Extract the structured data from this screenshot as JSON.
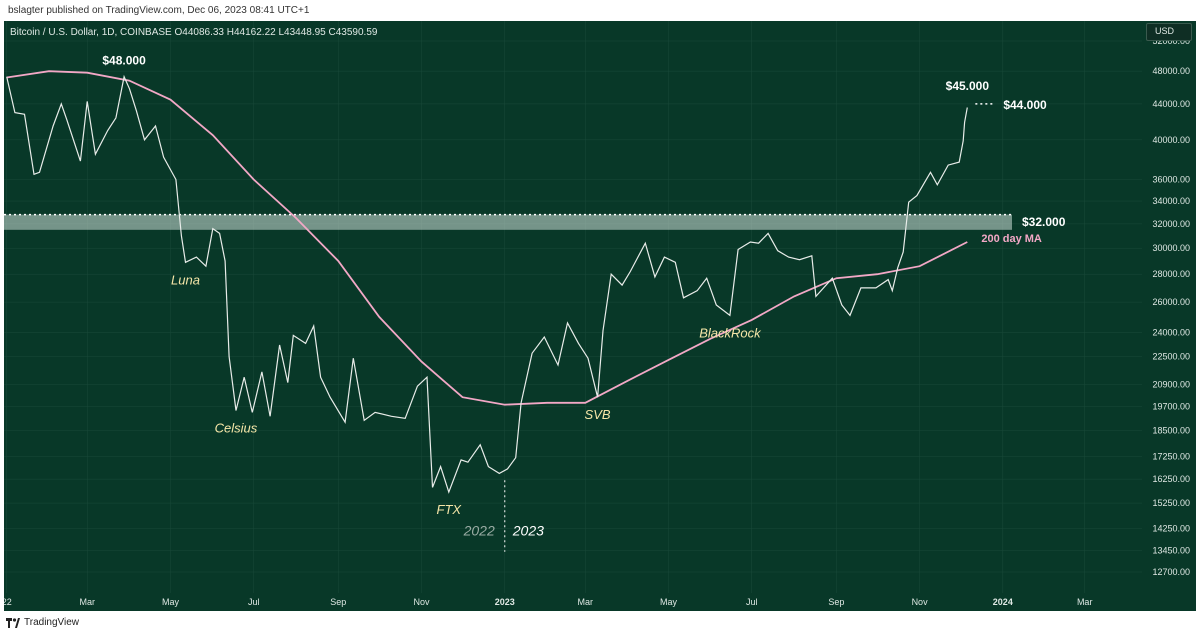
{
  "header": {
    "publisher": "bslagter published on TradingView.com, Dec 06, 2023 08:41 UTC+1"
  },
  "footer": {
    "brand": "TradingView"
  },
  "usd_button": "USD",
  "chart_data": {
    "type": "line",
    "legend_text": "Bitcoin / U.S. Dollar, 1D, COINBASE  O44086.33  H44162.22  L43448.95  C43590.59",
    "ohlc": {
      "open": 44086.33,
      "high": 44162.22,
      "low": 43448.95,
      "close": 43590.59
    },
    "y_ticks": [
      52000,
      48000,
      44000,
      40000,
      36000,
      34000,
      32000,
      30000,
      28000,
      26000,
      24000,
      22500,
      20900,
      19700,
      18500,
      17250,
      16250,
      15250,
      14250,
      13450,
      12700
    ],
    "y_tick_labels": [
      "52000.00",
      "48000.00",
      "44000.00",
      "40000.00",
      "36000.00",
      "34000.00",
      "32000.00",
      "30000.00",
      "28000.00",
      "26000.00",
      "24000.00",
      "22500.00",
      "20900.00",
      "19700.00",
      "18500.00",
      "17250.00",
      "16250.00",
      "15250.00",
      "14250.00",
      "13450.00",
      "12700.00"
    ],
    "x_ticks": [
      {
        "date": "2022-01-01",
        "label": "22"
      },
      {
        "date": "2022-03-01",
        "label": "Mar"
      },
      {
        "date": "2022-05-01",
        "label": "May"
      },
      {
        "date": "2022-07-01",
        "label": "Jul"
      },
      {
        "date": "2022-09-01",
        "label": "Sep"
      },
      {
        "date": "2022-11-01",
        "label": "Nov"
      },
      {
        "date": "2023-01-01",
        "label": "2023"
      },
      {
        "date": "2023-03-01",
        "label": "Mar"
      },
      {
        "date": "2023-05-01",
        "label": "May"
      },
      {
        "date": "2023-07-01",
        "label": "Jul"
      },
      {
        "date": "2023-09-01",
        "label": "Sep"
      },
      {
        "date": "2023-11-01",
        "label": "Nov"
      },
      {
        "date": "2024-01-01",
        "label": "2024"
      },
      {
        "date": "2024-03-01",
        "label": "Mar"
      }
    ],
    "x_range": [
      "2021-12-30",
      "2024-04-12"
    ],
    "log_scale": true,
    "series": [
      {
        "color": "#e8ece9",
        "points": [
          [
            "2022-01-01",
            47300
          ],
          [
            "2022-01-07",
            43000
          ],
          [
            "2022-01-14",
            42800
          ],
          [
            "2022-01-21",
            36500
          ],
          [
            "2022-01-25",
            36700
          ],
          [
            "2022-02-04",
            41500
          ],
          [
            "2022-02-10",
            44000
          ],
          [
            "2022-02-14",
            42200
          ],
          [
            "2022-02-24",
            37800
          ],
          [
            "2022-03-01",
            44300
          ],
          [
            "2022-03-07",
            38500
          ],
          [
            "2022-03-16",
            41000
          ],
          [
            "2022-03-22",
            42400
          ],
          [
            "2022-03-28",
            47300
          ],
          [
            "2022-04-01",
            45800
          ],
          [
            "2022-04-06",
            43200
          ],
          [
            "2022-04-12",
            40000
          ],
          [
            "2022-04-20",
            41500
          ],
          [
            "2022-04-26",
            38200
          ],
          [
            "2022-05-05",
            36000
          ],
          [
            "2022-05-09",
            31000
          ],
          [
            "2022-05-12",
            28900
          ],
          [
            "2022-05-20",
            29300
          ],
          [
            "2022-05-27",
            28600
          ],
          [
            "2022-06-01",
            31600
          ],
          [
            "2022-06-06",
            31200
          ],
          [
            "2022-06-10",
            29000
          ],
          [
            "2022-06-13",
            22500
          ],
          [
            "2022-06-18",
            19500
          ],
          [
            "2022-06-24",
            21300
          ],
          [
            "2022-06-30",
            19400
          ],
          [
            "2022-07-07",
            21600
          ],
          [
            "2022-07-13",
            19200
          ],
          [
            "2022-07-20",
            23200
          ],
          [
            "2022-07-26",
            21000
          ],
          [
            "2022-07-30",
            23800
          ],
          [
            "2022-08-08",
            23300
          ],
          [
            "2022-08-14",
            24400
          ],
          [
            "2022-08-19",
            21300
          ],
          [
            "2022-08-26",
            20200
          ],
          [
            "2022-09-06",
            18900
          ],
          [
            "2022-09-12",
            22400
          ],
          [
            "2022-09-20",
            19000
          ],
          [
            "2022-09-28",
            19400
          ],
          [
            "2022-10-10",
            19200
          ],
          [
            "2022-10-20",
            19100
          ],
          [
            "2022-10-29",
            20800
          ],
          [
            "2022-11-05",
            21300
          ],
          [
            "2022-11-09",
            15900
          ],
          [
            "2022-11-15",
            16800
          ],
          [
            "2022-11-21",
            15700
          ],
          [
            "2022-11-30",
            17100
          ],
          [
            "2022-12-05",
            17000
          ],
          [
            "2022-12-14",
            17800
          ],
          [
            "2022-12-20",
            16800
          ],
          [
            "2022-12-28",
            16500
          ],
          [
            "2023-01-03",
            16700
          ],
          [
            "2023-01-09",
            17200
          ],
          [
            "2023-01-13",
            19900
          ],
          [
            "2023-01-21",
            22700
          ],
          [
            "2023-01-30",
            23700
          ],
          [
            "2023-02-09",
            22000
          ],
          [
            "2023-02-16",
            24600
          ],
          [
            "2023-02-24",
            23300
          ],
          [
            "2023-03-03",
            22400
          ],
          [
            "2023-03-10",
            20200
          ],
          [
            "2023-03-14",
            24100
          ],
          [
            "2023-03-20",
            28000
          ],
          [
            "2023-03-28",
            27200
          ],
          [
            "2023-04-03",
            28200
          ],
          [
            "2023-04-14",
            30400
          ],
          [
            "2023-04-21",
            27800
          ],
          [
            "2023-04-28",
            29300
          ],
          [
            "2023-05-06",
            28900
          ],
          [
            "2023-05-12",
            26300
          ],
          [
            "2023-05-22",
            26800
          ],
          [
            "2023-05-29",
            27700
          ],
          [
            "2023-06-05",
            25800
          ],
          [
            "2023-06-15",
            25100
          ],
          [
            "2023-06-21",
            29900
          ],
          [
            "2023-06-30",
            30500
          ],
          [
            "2023-07-06",
            30400
          ],
          [
            "2023-07-13",
            31200
          ],
          [
            "2023-07-20",
            29800
          ],
          [
            "2023-07-28",
            29300
          ],
          [
            "2023-08-05",
            29100
          ],
          [
            "2023-08-14",
            29400
          ],
          [
            "2023-08-17",
            26400
          ],
          [
            "2023-08-29",
            27700
          ],
          [
            "2023-09-05",
            25800
          ],
          [
            "2023-09-11",
            25100
          ],
          [
            "2023-09-19",
            27000
          ],
          [
            "2023-09-30",
            27000
          ],
          [
            "2023-10-09",
            27600
          ],
          [
            "2023-10-12",
            26800
          ],
          [
            "2023-10-16",
            28500
          ],
          [
            "2023-10-20",
            29700
          ],
          [
            "2023-10-24",
            33900
          ],
          [
            "2023-10-30",
            34500
          ],
          [
            "2023-11-09",
            36700
          ],
          [
            "2023-11-14",
            35500
          ],
          [
            "2023-11-22",
            37400
          ],
          [
            "2023-11-30",
            37700
          ],
          [
            "2023-12-03",
            39900
          ],
          [
            "2023-12-04",
            41900
          ],
          [
            "2023-12-06",
            43590
          ]
        ]
      },
      {
        "name": "200 day MA",
        "color": "#f2a8c6",
        "points": [
          [
            "2022-01-01",
            47200
          ],
          [
            "2022-02-01",
            48000
          ],
          [
            "2022-03-01",
            47800
          ],
          [
            "2022-04-01",
            46800
          ],
          [
            "2022-05-01",
            44500
          ],
          [
            "2022-06-01",
            40500
          ],
          [
            "2022-07-01",
            36000
          ],
          [
            "2022-08-01",
            32500
          ],
          [
            "2022-09-01",
            29000
          ],
          [
            "2022-10-01",
            25000
          ],
          [
            "2022-11-01",
            22200
          ],
          [
            "2022-12-01",
            20200
          ],
          [
            "2023-01-01",
            19800
          ],
          [
            "2023-02-01",
            19900
          ],
          [
            "2023-03-01",
            19900
          ],
          [
            "2023-04-01",
            21100
          ],
          [
            "2023-05-01",
            22300
          ],
          [
            "2023-06-01",
            23600
          ],
          [
            "2023-07-01",
            24800
          ],
          [
            "2023-08-01",
            26400
          ],
          [
            "2023-09-01",
            27700
          ],
          [
            "2023-10-01",
            28000
          ],
          [
            "2023-11-01",
            28600
          ],
          [
            "2023-12-06",
            30500
          ]
        ]
      }
    ],
    "resistance_zone": {
      "low": 31500,
      "high": 32800,
      "label": "$32.000"
    },
    "annotations": [
      {
        "text": "$48.000",
        "date": "2022-03-28",
        "price": 47300,
        "style": "price"
      },
      {
        "text": "Luna",
        "date": "2022-05-12",
        "price": 28900,
        "style": "event"
      },
      {
        "text": "Celsius",
        "date": "2022-06-18",
        "price": 19500,
        "style": "event"
      },
      {
        "text": "FTX",
        "date": "2022-11-21",
        "price": 15700,
        "style": "event"
      },
      {
        "text": "SVB",
        "date": "2023-03-10",
        "price": 20200,
        "style": "event"
      },
      {
        "text": "BlackRock",
        "date": "2023-06-15",
        "price": 25100,
        "style": "event"
      },
      {
        "text": "$45.000",
        "date": "2023-12-06",
        "price": 44200,
        "style": "price"
      },
      {
        "text": "$44.000",
        "date": "2023-12-06",
        "price": 44000,
        "style": "target"
      },
      {
        "text": "200 day MA",
        "date": "2023-12-06",
        "price": 30500,
        "style": "ma"
      }
    ],
    "year_labels": [
      {
        "text": "2022"
      },
      {
        "text": "2023"
      }
    ],
    "year_divider_date": "2023-01-01",
    "colors": {
      "background": "#083828",
      "price_line": "#e8ece9",
      "ma_line": "#f2a8c6",
      "event_label": "#f5e6a8",
      "ma_label": "#f2a8c6"
    }
  }
}
